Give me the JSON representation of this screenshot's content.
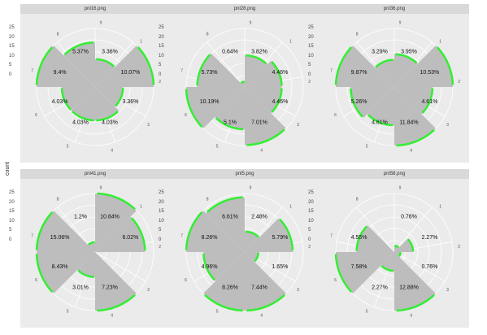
{
  "ylabel": "count",
  "chart_data": {
    "type": "polar-bar",
    "y_ticks": [
      0,
      5,
      10,
      15,
      20,
      25
    ],
    "directions": [
      "1",
      "2",
      "3",
      "4",
      "5",
      "6",
      "7",
      "8",
      "9"
    ],
    "panels": [
      {
        "title": "pnl16.png",
        "labels": [
          "3.36%",
          "10.07%",
          "3.36%",
          "4.03%",
          "4.03%",
          "4.03%",
          "9.4%",
          "5.37%"
        ],
        "values": [
          3.36,
          10.07,
          3.36,
          4.03,
          4.03,
          4.03,
          9.4,
          5.37
        ]
      },
      {
        "title": "pnl28.png",
        "labels": [
          "3.82%",
          "4.46%",
          "4.46%",
          "7.01%",
          "5.1%",
          "10.19%",
          "5.73%",
          "0.64%"
        ],
        "values": [
          3.82,
          4.46,
          4.46,
          7.01,
          5.1,
          10.19,
          5.73,
          0.64
        ]
      },
      {
        "title": "pnl36.png",
        "labels": [
          "3.95%",
          "10.53%",
          "4.61%",
          "11.84%",
          "4.61%",
          "5.26%",
          "9.87%",
          "3.29%"
        ],
        "values": [
          3.95,
          10.53,
          4.61,
          11.84,
          4.61,
          5.26,
          9.87,
          3.29
        ]
      },
      {
        "title": "pnl41.png",
        "labels": [
          "10.84%",
          "6.02%",
          "7.23%",
          "3.01%",
          "8.43%",
          "15.06%",
          "1.2%"
        ],
        "values": [
          10.84,
          6.02,
          7.23,
          3.01,
          8.43,
          15.06,
          1.2
        ]
      },
      {
        "title": "pnl5.png",
        "labels": [
          "2.48%",
          "5.79%",
          "1.65%",
          "7.44%",
          "8.26%",
          "4.96%",
          "8.26%",
          "6.61%"
        ],
        "values": [
          2.48,
          5.79,
          1.65,
          7.44,
          8.26,
          4.96,
          8.26,
          6.61
        ]
      },
      {
        "title": "pnl58.png",
        "labels": [
          "0.76%",
          "2.27%",
          "0.76%",
          "12.88%",
          "2.27%",
          "7.58%",
          "4.55%"
        ],
        "values": [
          0.76,
          2.27,
          0.76,
          12.88,
          2.27,
          7.58,
          4.55
        ]
      }
    ],
    "colors": {
      "bar": "#bdbdbd",
      "highlight": "#33ee33",
      "background": "#ebebeb",
      "strip": "#d9d9d9",
      "grid": "#ffffff"
    }
  }
}
